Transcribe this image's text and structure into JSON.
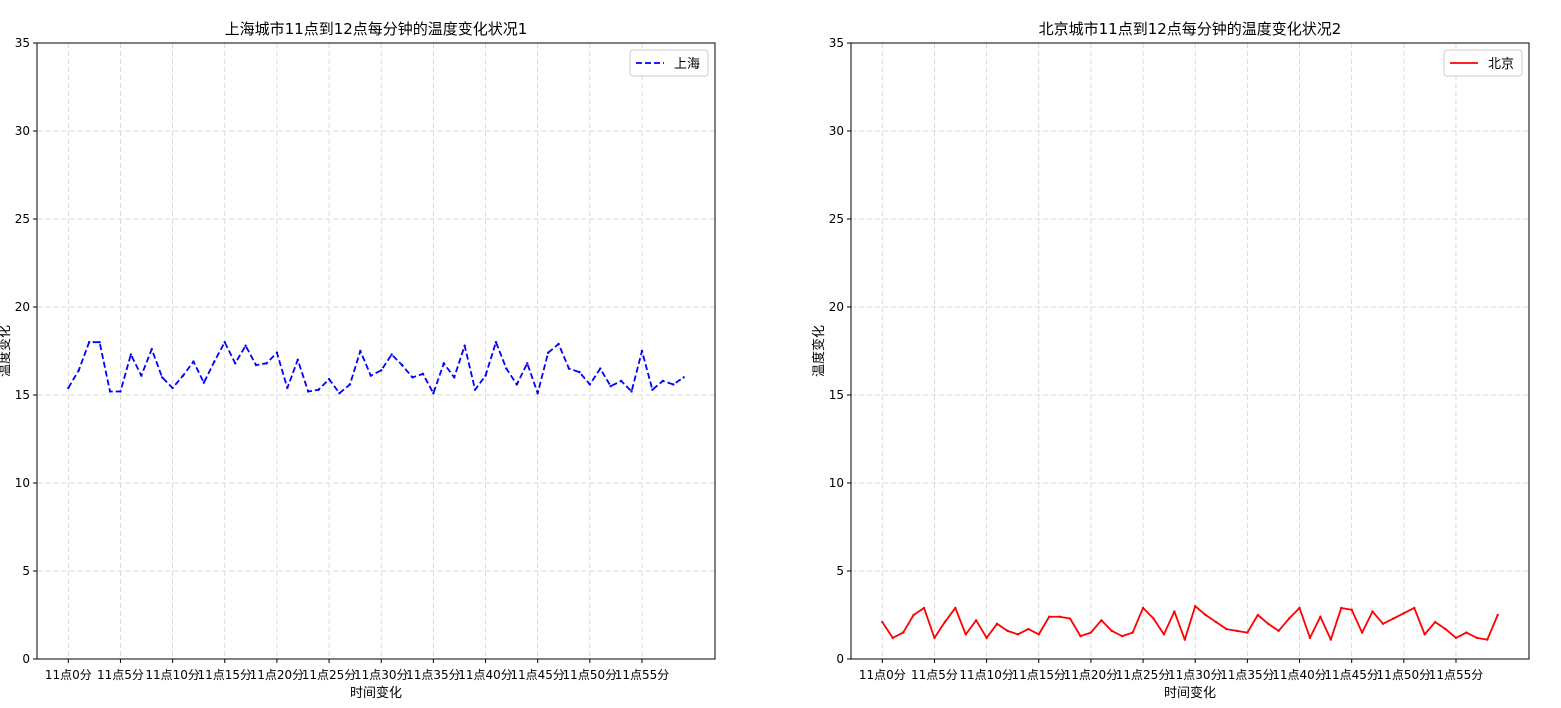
{
  "chart_data": [
    {
      "type": "line",
      "title": "上海城市11点到12点每分钟的温度变化状况1",
      "xlabel": "时间变化",
      "ylabel": "温度变化",
      "ylim": [
        0,
        35
      ],
      "xlim": [
        -3,
        62
      ],
      "yticks": [
        0,
        5,
        10,
        15,
        20,
        25,
        30,
        35
      ],
      "xticks": [
        0,
        5,
        10,
        15,
        20,
        25,
        30,
        35,
        40,
        45,
        50,
        55
      ],
      "xtick_labels": [
        "11点0分",
        "11点5分",
        "11点10分",
        "11点15分",
        "11点20分",
        "11点25分",
        "11点30分",
        "11点35分",
        "11点40分",
        "11点45分",
        "11点50分",
        "11点55分"
      ],
      "grid": true,
      "legend_position": "top-right",
      "series": [
        {
          "name": "上海",
          "color": "#0000ff",
          "line_style": "dashed",
          "x": [
            0,
            1,
            2,
            3,
            4,
            5,
            6,
            7,
            8,
            9,
            10,
            11,
            12,
            13,
            14,
            15,
            16,
            17,
            18,
            19,
            20,
            21,
            22,
            23,
            24,
            25,
            26,
            27,
            28,
            29,
            30,
            31,
            32,
            33,
            34,
            35,
            36,
            37,
            38,
            39,
            40,
            41,
            42,
            43,
            44,
            45,
            46,
            47,
            48,
            49,
            50,
            51,
            52,
            53,
            54,
            55,
            56,
            57,
            58,
            59
          ],
          "values": [
            15.4,
            16.4,
            18.0,
            18.0,
            15.2,
            15.2,
            17.3,
            16.1,
            17.6,
            16.0,
            15.4,
            16.1,
            16.9,
            15.7,
            16.9,
            18.0,
            16.8,
            17.8,
            16.7,
            16.8,
            17.4,
            15.4,
            17.0,
            15.2,
            15.3,
            15.9,
            15.1,
            15.6,
            17.5,
            16.1,
            16.4,
            17.3,
            16.7,
            16.0,
            16.2,
            15.1,
            16.8,
            16.0,
            17.8,
            15.3,
            16.1,
            18.0,
            16.5,
            15.6,
            16.8,
            15.1,
            17.4,
            17.9,
            16.5,
            16.3,
            15.6,
            16.5,
            15.5,
            15.8,
            15.2,
            17.5,
            15.3,
            15.8,
            15.6,
            16.0
          ]
        }
      ]
    },
    {
      "type": "line",
      "title": "北京城市11点到12点每分钟的温度变化状况2",
      "xlabel": "时间变化",
      "ylabel": "温度变化",
      "ylim": [
        0,
        35
      ],
      "xlim": [
        -3,
        62
      ],
      "yticks": [
        0,
        5,
        10,
        15,
        20,
        25,
        30,
        35
      ],
      "xticks": [
        0,
        5,
        10,
        15,
        20,
        25,
        30,
        35,
        40,
        45,
        50,
        55
      ],
      "xtick_labels": [
        "11点0分",
        "11点5分",
        "11点10分",
        "11点15分",
        "11点20分",
        "11点25分",
        "11点30分",
        "11点35分",
        "11点40分",
        "11点45分",
        "11点50分",
        "11点55分"
      ],
      "grid": true,
      "legend_position": "top-right",
      "series": [
        {
          "name": "北京",
          "color": "#ff0000",
          "line_style": "solid",
          "x": [
            0,
            1,
            2,
            3,
            4,
            5,
            6,
            7,
            8,
            9,
            10,
            11,
            12,
            13,
            14,
            15,
            16,
            17,
            18,
            19,
            20,
            21,
            22,
            23,
            24,
            25,
            26,
            27,
            28,
            29,
            30,
            31,
            32,
            33,
            34,
            35,
            36,
            37,
            38,
            39,
            40,
            41,
            42,
            43,
            44,
            45,
            46,
            47,
            48,
            49,
            50,
            51,
            52,
            53,
            54,
            55,
            56,
            57,
            58,
            59
          ],
          "values": [
            2.1,
            1.2,
            1.5,
            2.5,
            2.9,
            1.2,
            2.1,
            2.9,
            1.4,
            2.2,
            1.2,
            2.0,
            1.6,
            1.4,
            1.7,
            1.4,
            2.4,
            2.4,
            2.3,
            1.3,
            1.5,
            2.2,
            1.6,
            1.3,
            1.5,
            2.9,
            2.3,
            1.4,
            2.7,
            1.1,
            3.0,
            2.5,
            2.1,
            1.7,
            1.6,
            1.5,
            2.5,
            2.0,
            1.6,
            2.3,
            2.9,
            1.2,
            2.4,
            1.1,
            2.9,
            2.8,
            1.5,
            2.7,
            2.0,
            2.3,
            2.6,
            2.9,
            1.4,
            2.1,
            1.7,
            1.2,
            1.5,
            1.2,
            1.1,
            2.5
          ]
        }
      ]
    }
  ]
}
